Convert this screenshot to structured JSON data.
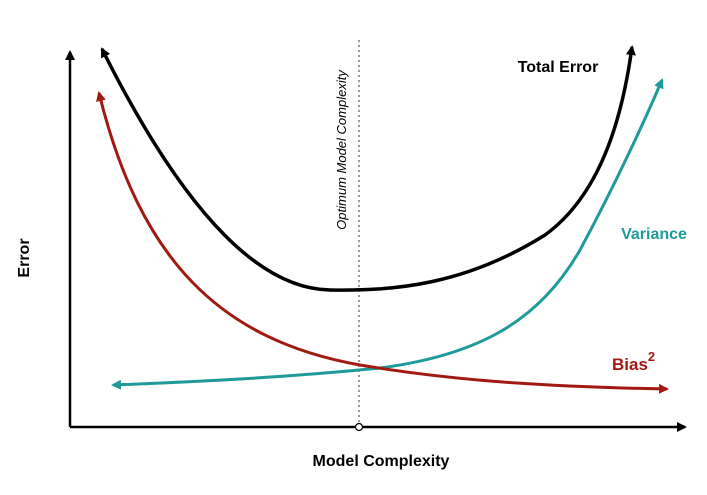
{
  "axes": {
    "x_label": "Model Complexity",
    "y_label": "Error"
  },
  "annotations": {
    "optimum_label": "Optimum Model Complexity"
  },
  "curves": {
    "total_error": {
      "label": "Total Error",
      "color": "#000000"
    },
    "variance": {
      "label": "Variance",
      "color": "#1f9a9a"
    },
    "bias": {
      "label": "Bias",
      "superscript": "2",
      "color": "#a01a12"
    }
  }
}
